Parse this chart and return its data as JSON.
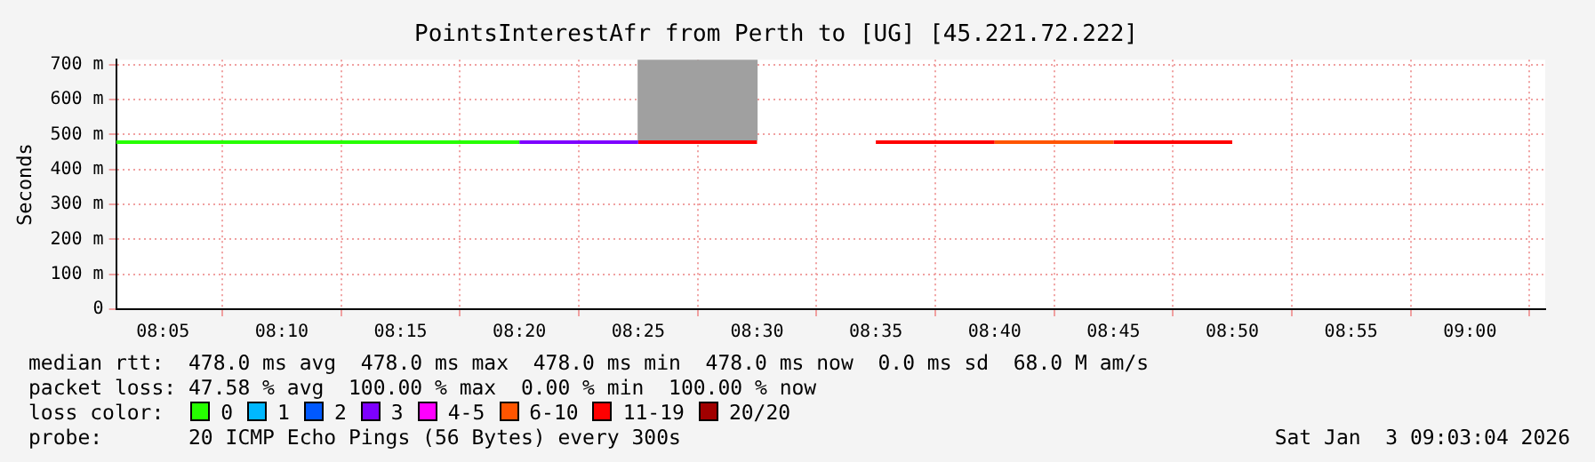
{
  "chart_data": {
    "type": "line",
    "title": "PointsInterestAfr from Perth to [UG] [45.221.72.222]",
    "ylabel": "Seconds",
    "xlim": [
      8.0505,
      9.0528
    ],
    "xticks": [
      {
        "value": 8.08333,
        "label": "08:05"
      },
      {
        "value": 8.16667,
        "label": "08:10"
      },
      {
        "value": 8.25,
        "label": "08:15"
      },
      {
        "value": 8.33333,
        "label": "08:20"
      },
      {
        "value": 8.41667,
        "label": "08:25"
      },
      {
        "value": 8.5,
        "label": "08:30"
      },
      {
        "value": 8.58333,
        "label": "08:35"
      },
      {
        "value": 8.66667,
        "label": "08:40"
      },
      {
        "value": 8.75,
        "label": "08:45"
      },
      {
        "value": 8.83333,
        "label": "08:50"
      },
      {
        "value": 8.91667,
        "label": "08:55"
      },
      {
        "value": 9.0,
        "label": "09:00"
      }
    ],
    "ylim": [
      0,
      714
    ],
    "yticks": [
      0,
      {
        "value": 100,
        "label": "100 m"
      },
      {
        "value": 200,
        "label": "200 m"
      },
      {
        "value": 300,
        "label": "300 m"
      },
      {
        "value": 400,
        "label": "400 m"
      },
      {
        "value": 500,
        "label": "500 m"
      },
      {
        "value": 600,
        "label": "600 m"
      },
      {
        "value": 700,
        "label": "700 m"
      }
    ],
    "grid": true,
    "legend": "bottom",
    "legend_title": "loss color:",
    "series": [
      {
        "type": "bar",
        "color": "#a0a0a0",
        "x": [
          8.45833
        ],
        "base": [
          485
        ],
        "values": [
          229
        ]
      },
      {
        "name": "0",
        "color": "#26ff00",
        "x": [
          8.0505,
          8.33333
        ],
        "values": [
          478,
          478
        ]
      },
      {
        "name": "1",
        "color": "#00b8ff"
      },
      {
        "name": "2",
        "color": "#0059ff"
      },
      {
        "name": "3",
        "color": "#7e00ff",
        "x": [
          8.33333,
          8.41667
        ],
        "values": [
          478,
          478
        ]
      },
      {
        "name": "4-5",
        "color": "#ff00ff"
      },
      {
        "name": "6-10",
        "color": "#ff5500",
        "x": [
          8.66667,
          8.75
        ],
        "values": [
          478,
          478
        ]
      },
      {
        "name": "11-19",
        "color": "#ff0000",
        "x": [
          8.41667,
          8.5,
          8.54,
          8.58333,
          8.66667,
          8.7,
          8.75,
          8.83333
        ],
        "values": [
          478,
          478,
          null,
          478,
          478,
          null,
          478,
          478
        ]
      },
      {
        "name": "20/20",
        "color": "#a10000"
      }
    ],
    "annotations": [
      "median rtt:  478.0 ms avg  478.0 ms max  478.0 ms min  478.0 ms now  0.0 ms sd  68.0 M am/s",
      "packet loss: 47.58 % avg  100.00 % max  0.00 % min  100.00 % now",
      "probe:       20 ICMP Echo Pings (56 Bytes) every 300s",
      "Sat Jan  3 09:03:04 2026"
    ]
  }
}
